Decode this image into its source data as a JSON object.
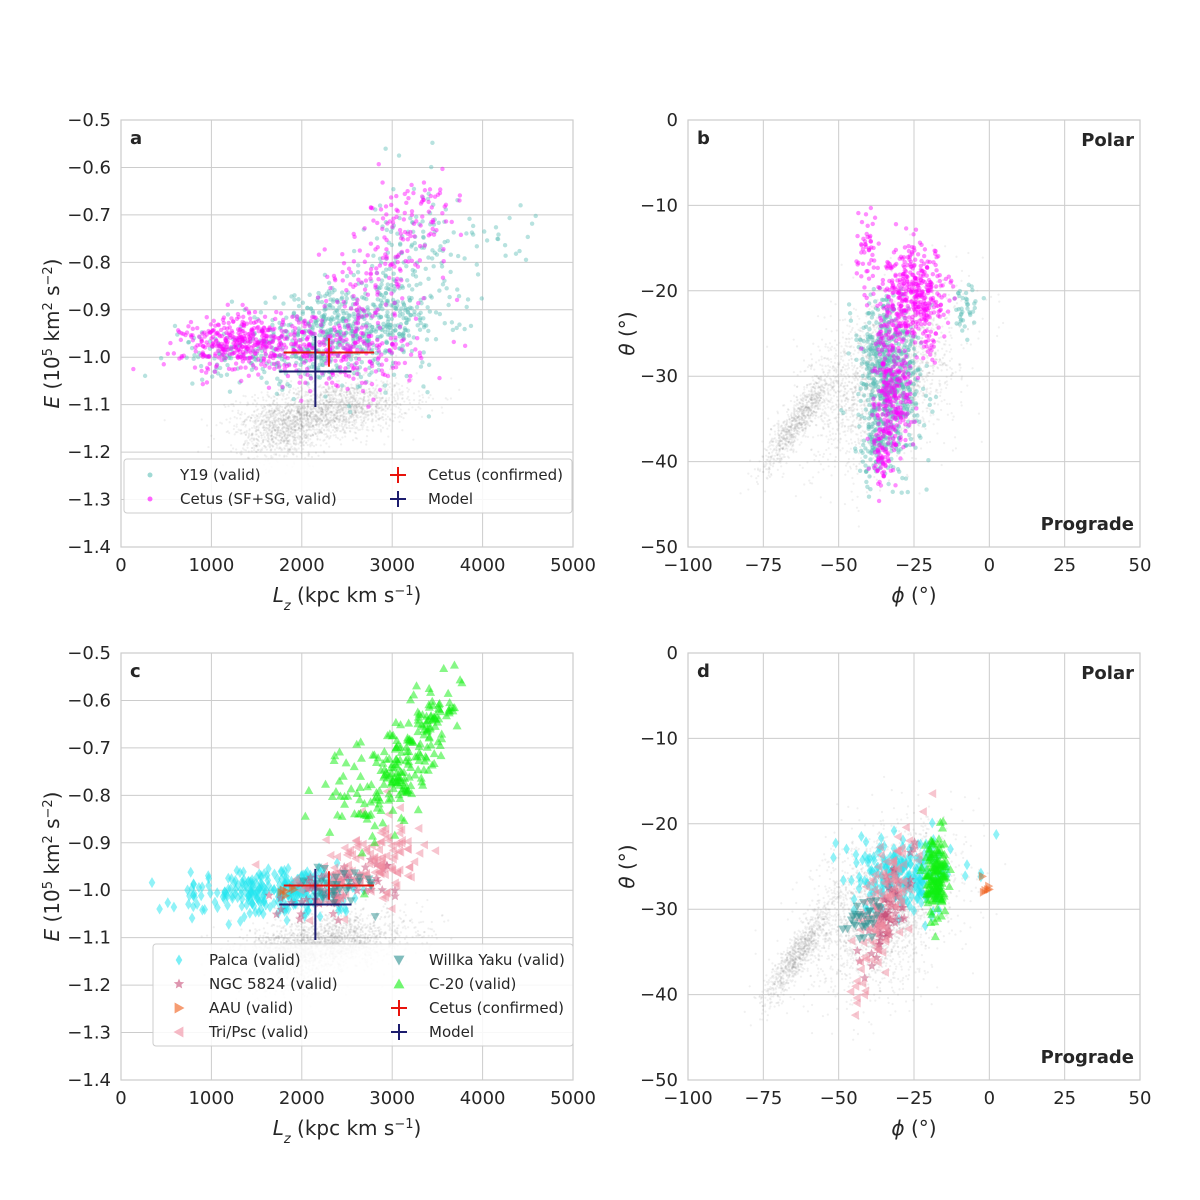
{
  "colors": {
    "Y19": "#5fbfb7",
    "Cetus_SFSG": "#ff00ff",
    "Palca": "#22e5f0",
    "NGC5824": "#c8507a",
    "AAU": "#f05a14",
    "TriPsc": "#f08ca0",
    "WillkaYaku": "#2a8f8f",
    "C20": "#10f010",
    "cetus_confirmed": "#e8130c",
    "model": "#1c1c6e",
    "background": "#808080"
  },
  "chart_data": [
    {
      "panel": "a",
      "type": "scatter",
      "xlabel_main": "L",
      "xlabel_sub": "z",
      "xlabel_rest": " (kpc km s",
      "xlabel_sup": "−1",
      "xlabel_end": ")",
      "ylabel_main": "E",
      "ylabel_rest": " (10",
      "ylabel_sup1": "5",
      "ylabel_mid": " km",
      "ylabel_sup2": "2",
      "ylabel_mid2": " s",
      "ylabel_sup3": "−2",
      "ylabel_end": ")",
      "xlim": [
        0,
        5000
      ],
      "ylim": [
        -1.4,
        -0.5
      ],
      "xticks": [
        "0",
        "1000",
        "2000",
        "3000",
        "4000",
        "5000"
      ],
      "yticks": [
        "−0.5",
        "−0.6",
        "−0.7",
        "−0.8",
        "−0.9",
        "−1.0",
        "−1.1",
        "−1.2",
        "−1.3",
        "−1.4"
      ],
      "legend": {
        "placement": "lower",
        "entries": [
          "Y19 (valid)",
          "Cetus (SF+SG, valid)",
          "Cetus (confirmed)",
          "Model"
        ]
      },
      "series": [
        {
          "name": "Y19 (valid)",
          "marker": "circle",
          "color_key": "Y19",
          "clusters": [
            {
              "x": 2400,
              "y": -0.95,
              "sx": 600,
              "sy": 0.05,
              "n": 700,
              "rho": 0.4
            },
            {
              "x": 3150,
              "y": -0.82,
              "sx": 250,
              "sy": 0.1,
              "n": 160,
              "rho": 0.3
            },
            {
              "x": 4100,
              "y": -0.75,
              "sx": 300,
              "sy": 0.04,
              "n": 30,
              "rho": 0.0
            },
            {
              "x": 1100,
              "y": -0.99,
              "sx": 350,
              "sy": 0.02,
              "n": 60,
              "rho": 0.0
            }
          ]
        },
        {
          "name": "Cetus (SF+SG, valid)",
          "marker": "circle",
          "color_key": "Cetus_SFSG",
          "clusters": [
            {
              "x": 1400,
              "y": -0.97,
              "sx": 350,
              "sy": 0.03,
              "n": 420,
              "rho": 0.1
            },
            {
              "x": 2500,
              "y": -0.99,
              "sx": 400,
              "sy": 0.04,
              "n": 220,
              "rho": 0.0
            },
            {
              "x": 2900,
              "y": -0.8,
              "sx": 350,
              "sy": 0.08,
              "n": 170,
              "rho": 0.5
            },
            {
              "x": 3400,
              "y": -0.68,
              "sx": 200,
              "sy": 0.03,
              "n": 30,
              "rho": 0.0
            }
          ]
        }
      ],
      "background": {
        "clusters": [
          {
            "x": 2300,
            "y": -1.11,
            "sx": 450,
            "sy": 0.03,
            "n": 1800,
            "rho": 0.3
          },
          {
            "x": 1800,
            "y": -1.16,
            "sx": 250,
            "sy": 0.03,
            "n": 700,
            "rho": 0.2
          }
        ]
      },
      "crosses": [
        {
          "name": "Cetus (confirmed)",
          "color_key": "cetus_confirmed",
          "x": 2300,
          "y": -0.99,
          "dx": 500,
          "dy": 0.03
        },
        {
          "name": "Model",
          "color_key": "model",
          "x": 2150,
          "y": -1.03,
          "dx": 400,
          "dy": 0.075
        }
      ]
    },
    {
      "panel": "b",
      "type": "scatter",
      "xlabel_main": "ϕ",
      "xlabel_rest": " (°)",
      "ylabel_main": "θ",
      "ylabel_rest": " (°)",
      "xlim": [
        -100,
        50
      ],
      "ylim": [
        -50,
        0
      ],
      "xticks": [
        "−100",
        "−75",
        "−50",
        "−25",
        "0",
        "25",
        "50"
      ],
      "yticks": [
        "0",
        "−10",
        "−20",
        "−30",
        "−40",
        "−50"
      ],
      "corner_top": "Polar",
      "corner_bottom": "Prograde",
      "series": [
        {
          "name": "Y19 (valid)",
          "marker": "circle",
          "color_key": "Y19",
          "clusters": [
            {
              "x": -33,
              "y": -30,
              "sx": 5,
              "sy": 4.5,
              "n": 700,
              "rho": -0.2
            },
            {
              "x": -38,
              "y": -38,
              "sx": 3,
              "sy": 2.5,
              "n": 120,
              "rho": 0.0
            },
            {
              "x": -8,
              "y": -22,
              "sx": 2,
              "sy": 1.5,
              "n": 40,
              "rho": 0.0
            }
          ]
        },
        {
          "name": "Cetus (SF+SG, valid)",
          "marker": "circle",
          "color_key": "Cetus_SFSG",
          "clusters": [
            {
              "x": -25,
              "y": -21,
              "sx": 6,
              "sy": 3,
              "n": 450,
              "rho": 0.0
            },
            {
              "x": -32,
              "y": -32,
              "sx": 3,
              "sy": 4,
              "n": 260,
              "rho": 0.0
            },
            {
              "x": -36,
              "y": -39,
              "sx": 2,
              "sy": 2,
              "n": 60,
              "rho": 0.0
            },
            {
              "x": -41,
              "y": -15,
              "sx": 1.5,
              "sy": 2.5,
              "n": 40,
              "rho": 0.0
            }
          ]
        }
      ],
      "background": {
        "clusters": [
          {
            "x": -35,
            "y": -30,
            "sx": 12,
            "sy": 5,
            "n": 2200,
            "rho": 0.4
          },
          {
            "x": -63,
            "y": -35,
            "sx": 6,
            "sy": 3,
            "n": 900,
            "rho": 0.9
          }
        ]
      }
    },
    {
      "panel": "c",
      "type": "scatter",
      "xlabel_main": "L",
      "xlabel_sub": "z",
      "xlabel_rest": " (kpc km s",
      "xlabel_sup": "−1",
      "xlabel_end": ")",
      "ylabel_main": "E",
      "ylabel_rest": " (10",
      "ylabel_sup1": "5",
      "ylabel_mid": " km",
      "ylabel_sup2": "2",
      "ylabel_mid2": " s",
      "ylabel_sup3": "−2",
      "ylabel_end": ")",
      "xlim": [
        0,
        5000
      ],
      "ylim": [
        -1.4,
        -0.5
      ],
      "xticks": [
        "0",
        "1000",
        "2000",
        "3000",
        "4000",
        "5000"
      ],
      "yticks": [
        "−0.5",
        "−0.6",
        "−0.7",
        "−0.8",
        "−0.9",
        "−1.0",
        "−1.1",
        "−1.2",
        "−1.3",
        "−1.4"
      ],
      "legend": {
        "placement": "lower",
        "entries": [
          "Palca (valid)",
          "NGC 5824 (valid)",
          "AAU (valid)",
          "Tri/Psc (valid)",
          "Willka Yaku (valid)",
          "C-20 (valid)",
          "Cetus (confirmed)",
          "Model"
        ]
      },
      "series": [
        {
          "name": "Palca (valid)",
          "marker": "diamond",
          "color_key": "Palca",
          "clusters": [
            {
              "x": 1800,
              "y": -1.0,
              "sx": 400,
              "sy": 0.025,
              "n": 260,
              "rho": 0.2
            },
            {
              "x": 1000,
              "y": -1.01,
              "sx": 250,
              "sy": 0.02,
              "n": 20,
              "rho": 0.0
            }
          ]
        },
        {
          "name": "NGC 5824 (valid)",
          "marker": "star",
          "color_key": "NGC5824",
          "clusters": [
            {
              "x": 2400,
              "y": -1.0,
              "sx": 300,
              "sy": 0.03,
              "n": 70,
              "rho": 0.5
            }
          ]
        },
        {
          "name": "AAU (valid)",
          "marker": "tri-right",
          "color_key": "AAU",
          "clusters": [
            {
              "x": 1850,
              "y": -0.99,
              "sx": 60,
              "sy": 0.02,
              "n": 6,
              "rho": 0.0
            }
          ]
        },
        {
          "name": "Tri/Psc (valid)",
          "marker": "tri-left",
          "color_key": "TriPsc",
          "clusters": [
            {
              "x": 2700,
              "y": -0.95,
              "sx": 350,
              "sy": 0.05,
              "n": 140,
              "rho": 0.5
            }
          ]
        },
        {
          "name": "Willka Yaku (valid)",
          "marker": "tri-down",
          "color_key": "WillkaYaku",
          "clusters": [
            {
              "x": 2400,
              "y": -0.99,
              "sx": 200,
              "sy": 0.025,
              "n": 30,
              "rho": 0.0
            }
          ]
        },
        {
          "name": "C-20 (valid)",
          "marker": "tri-up",
          "color_key": "C20",
          "clusters": [
            {
              "x": 3150,
              "y": -0.74,
              "sx": 250,
              "sy": 0.08,
              "n": 180,
              "rho": 0.7
            },
            {
              "x": 2450,
              "y": -0.77,
              "sx": 250,
              "sy": 0.05,
              "n": 40,
              "rho": 0.0
            },
            {
              "x": 3500,
              "y": -0.63,
              "sx": 120,
              "sy": 0.02,
              "n": 25,
              "rho": 0.5
            }
          ]
        }
      ],
      "background": {
        "clusters": [
          {
            "x": 2300,
            "y": -1.11,
            "sx": 450,
            "sy": 0.03,
            "n": 1800,
            "rho": 0.3
          },
          {
            "x": 1800,
            "y": -1.16,
            "sx": 250,
            "sy": 0.03,
            "n": 700,
            "rho": 0.2
          }
        ]
      },
      "crosses": [
        {
          "name": "Cetus (confirmed)",
          "color_key": "cetus_confirmed",
          "x": 2300,
          "y": -0.99,
          "dx": 500,
          "dy": 0.03
        },
        {
          "name": "Model",
          "color_key": "model",
          "x": 2150,
          "y": -1.03,
          "dx": 400,
          "dy": 0.075
        }
      ]
    },
    {
      "panel": "d",
      "type": "scatter",
      "xlabel_main": "ϕ",
      "xlabel_rest": " (°)",
      "ylabel_main": "θ",
      "ylabel_rest": " (°)",
      "xlim": [
        -100,
        50
      ],
      "ylim": [
        -50,
        0
      ],
      "xticks": [
        "−100",
        "−75",
        "−50",
        "−25",
        "0",
        "25",
        "50"
      ],
      "yticks": [
        "0",
        "−10",
        "−20",
        "−30",
        "−40",
        "−50"
      ],
      "corner_top": "Polar",
      "corner_bottom": "Prograde",
      "series": [
        {
          "name": "Palca (valid)",
          "marker": "diamond",
          "color_key": "Palca",
          "clusters": [
            {
              "x": -28,
              "y": -26,
              "sx": 9,
              "sy": 2,
              "n": 220,
              "rho": 0.0
            }
          ]
        },
        {
          "name": "NGC 5824 (valid)",
          "marker": "star",
          "color_key": "NGC5824",
          "clusters": [
            {
              "x": -34,
              "y": -31,
              "sx": 4,
              "sy": 3.5,
              "n": 80,
              "rho": 0.8
            }
          ]
        },
        {
          "name": "AAU (valid)",
          "marker": "tri-right",
          "color_key": "AAU",
          "clusters": [
            {
              "x": -1,
              "y": -27.5,
              "sx": 0.6,
              "sy": 0.5,
              "n": 6,
              "rho": 0.0
            }
          ]
        },
        {
          "name": "Tri/Psc (valid)",
          "marker": "tri-left",
          "color_key": "TriPsc",
          "clusters": [
            {
              "x": -36,
              "y": -30,
              "sx": 5,
              "sy": 4.5,
              "n": 120,
              "rho": 0.7
            }
          ]
        },
        {
          "name": "Willka Yaku (valid)",
          "marker": "tri-down",
          "color_key": "WillkaYaku",
          "clusters": [
            {
              "x": -41,
              "y": -31,
              "sx": 3,
              "sy": 1.5,
              "n": 30,
              "rho": 0.3
            }
          ]
        },
        {
          "name": "C-20 (valid)",
          "marker": "tri-up",
          "color_key": "C20",
          "clusters": [
            {
              "x": -18,
              "y": -26,
              "sx": 2,
              "sy": 2.5,
              "n": 160,
              "rho": 0.0
            }
          ]
        }
      ],
      "background": {
        "clusters": [
          {
            "x": -35,
            "y": -30,
            "sx": 12,
            "sy": 5,
            "n": 2200,
            "rho": 0.4
          },
          {
            "x": -63,
            "y": -35,
            "sx": 6,
            "sy": 3,
            "n": 900,
            "rho": 0.9
          }
        ]
      }
    }
  ]
}
